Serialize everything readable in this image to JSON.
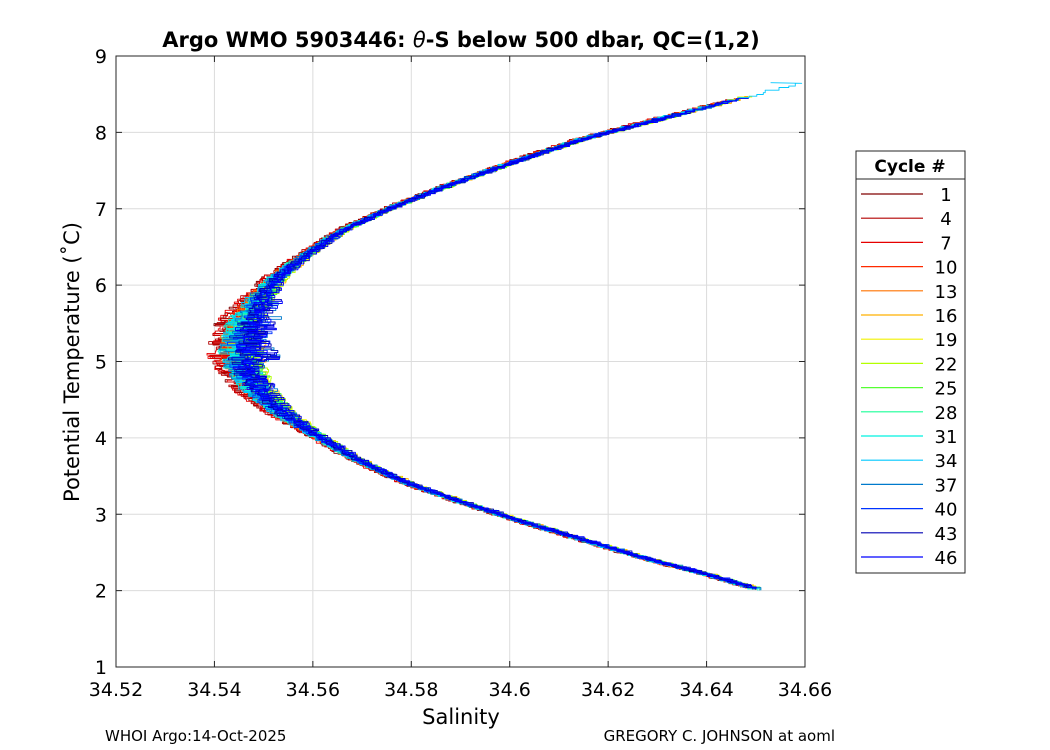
{
  "chart_data": {
    "type": "line",
    "title_pre": "Argo WMO 5903446: ",
    "title_theta": "θ",
    "title_post": "-S below 500 dbar,  QC=(1,2)",
    "xlabel": "Salinity",
    "ylabel": "Potential Temperature (˚C)",
    "xlim": [
      34.52,
      34.66
    ],
    "ylim": [
      1,
      9
    ],
    "xticks": [
      "34.52",
      "34.54",
      "34.56",
      "34.58",
      "34.6",
      "34.62",
      "34.64",
      "34.66"
    ],
    "yticks": [
      "1",
      "2",
      "3",
      "4",
      "5",
      "6",
      "7",
      "8",
      "9"
    ],
    "grid": true,
    "legend": {
      "title": "Cycle #",
      "placement": "outside-right",
      "entries": [
        {
          "label": "1",
          "color": "#800000"
        },
        {
          "label": "4",
          "color": "#b30000"
        },
        {
          "label": "7",
          "color": "#e60000"
        },
        {
          "label": "10",
          "color": "#ff2a00"
        },
        {
          "label": "13",
          "color": "#ff7300"
        },
        {
          "label": "16",
          "color": "#ffb000"
        },
        {
          "label": "19",
          "color": "#f2f200"
        },
        {
          "label": "22",
          "color": "#b4ff00"
        },
        {
          "label": "25",
          "color": "#55ff33"
        },
        {
          "label": "28",
          "color": "#1aff99"
        },
        {
          "label": "31",
          "color": "#00f2e0"
        },
        {
          "label": "34",
          "color": "#00c8ff"
        },
        {
          "label": "37",
          "color": "#007acc"
        },
        {
          "label": "40",
          "color": "#0033ff"
        },
        {
          "label": "43",
          "color": "#0000b3"
        },
        {
          "label": "46",
          "color": "#0000ff"
        }
      ]
    },
    "profile_spine": [
      {
        "s": 34.6505,
        "t": 2.0
      },
      {
        "s": 34.64,
        "t": 2.2
      },
      {
        "s": 34.628,
        "t": 2.4
      },
      {
        "s": 34.615,
        "t": 2.65
      },
      {
        "s": 34.602,
        "t": 2.9
      },
      {
        "s": 34.59,
        "t": 3.15
      },
      {
        "s": 34.579,
        "t": 3.4
      },
      {
        "s": 34.569,
        "t": 3.7
      },
      {
        "s": 34.56,
        "t": 4.05
      },
      {
        "s": 34.554,
        "t": 4.3
      },
      {
        "s": 34.549,
        "t": 4.6
      },
      {
        "s": 34.546,
        "t": 4.9
      },
      {
        "s": 34.545,
        "t": 5.2
      },
      {
        "s": 34.546,
        "t": 5.5
      },
      {
        "s": 34.549,
        "t": 5.8
      },
      {
        "s": 34.553,
        "t": 6.1
      },
      {
        "s": 34.559,
        "t": 6.4
      },
      {
        "s": 34.566,
        "t": 6.7
      },
      {
        "s": 34.576,
        "t": 7.0
      },
      {
        "s": 34.588,
        "t": 7.3
      },
      {
        "s": 34.601,
        "t": 7.6
      },
      {
        "s": 34.615,
        "t": 7.9
      },
      {
        "s": 34.63,
        "t": 8.15
      },
      {
        "s": 34.645,
        "t": 8.4
      }
    ],
    "profile_ends": {
      "deep_s": 34.6505,
      "deep_t": 2.0,
      "max_s": 34.653,
      "max_t": 8.65
    }
  },
  "footer": {
    "left": "WHOI Argo:14-Oct-2025",
    "right": "GREGORY C. JOHNSON at aoml"
  }
}
